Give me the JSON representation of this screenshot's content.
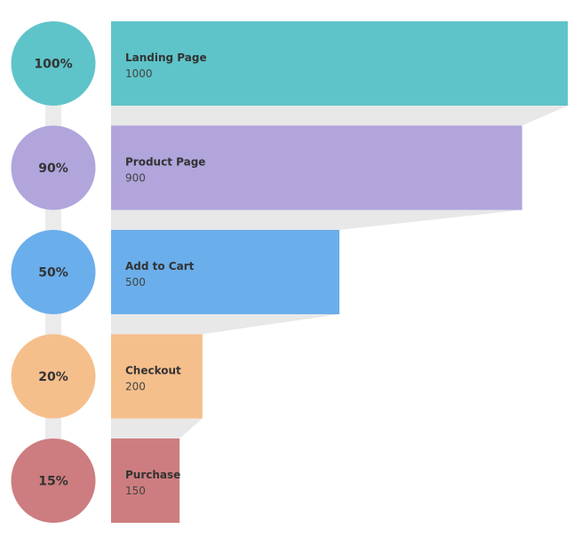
{
  "chart_data": {
    "type": "bar",
    "categories": [
      "Landing Page",
      "Product Page",
      "Add to Cart",
      "Checkout",
      "Purchase"
    ],
    "values": [
      1000,
      900,
      500,
      200,
      150
    ],
    "percent_labels": [
      "100%",
      "90%",
      "50%",
      "20%",
      "15%"
    ],
    "colors": [
      "#5ec4c9",
      "#b1a5dc",
      "#6aaeeb",
      "#f5bf8c",
      "#cd7d7f"
    ],
    "connector_color": "#e8e8e8"
  }
}
